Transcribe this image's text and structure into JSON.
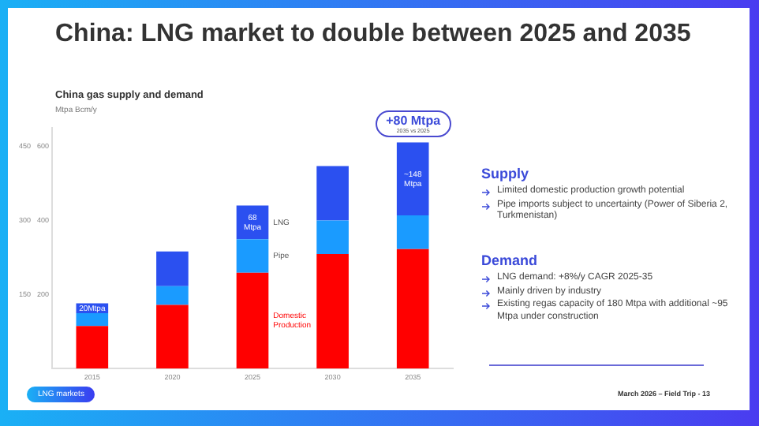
{
  "chart_data": [
    {
      "type": "bar",
      "title": "China: LNG market to double between 2025 and 2035",
      "subtitle": "China gas supply and demand",
      "ylabel": "Mtpa",
      "y2label": "Bcm/y",
      "categories": [
        "2015",
        "2020",
        "2025",
        "2030",
        "2035"
      ],
      "stacked": true,
      "legend": false,
      "grid": false,
      "series": [
        {
          "name": "Domestic Production",
          "color": "#ff0000",
          "values": [
            86,
            129,
            194,
            232,
            242
          ]
        },
        {
          "name": "Pipe",
          "color": "#1a9bff",
          "values": [
            26,
            38,
            68,
            68,
            68
          ]
        },
        {
          "name": "LNG",
          "color": "#2b50f0",
          "values": [
            20,
            70,
            68,
            110,
            148
          ],
          "value_labels": [
            "20Mtpa",
            null,
            "68 Mtpa",
            null,
            "~148 Mtpa"
          ]
        }
      ],
      "ylim": [
        0,
        487.5
      ],
      "yticks": [
        150,
        300,
        450
      ],
      "y2lim": [
        0,
        650
      ],
      "y2ticks": [
        200,
        400,
        600
      ],
      "annotations": [
        "+80 Mtpa",
        "2035 vs 2025",
        "LNG markets",
        "March 2026 – Field Trip - 13"
      ]
    },
    {
      "type": "other",
      "title": "Supply",
      "annotations": [
        "Limited domestic production growth potential",
        "Pipe imports subject to uncertainty (Power of Siberia 2, Turkmenistan)"
      ]
    },
    {
      "type": "other",
      "title": "Demand",
      "annotations": [
        "LNG demand: +8%/y CAGR 2025-35",
        "Mainly driven by industry",
        "Existing regas capacity of 180 Mtpa with additional ~95 Mtpa under construction"
      ]
    }
  ]
}
